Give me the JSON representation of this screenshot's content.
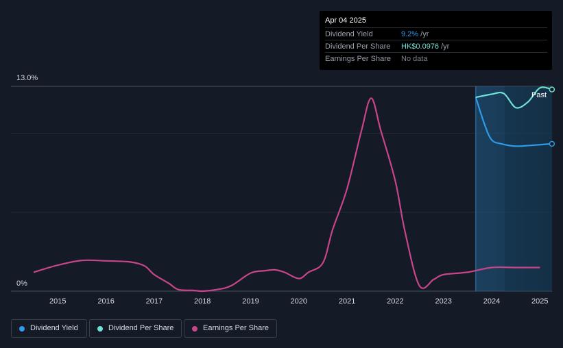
{
  "tooltip": {
    "date": "Apr 04 2025",
    "rows": [
      {
        "label": "Dividend Yield",
        "value": "9.2%",
        "unit": " /yr",
        "color": "#2e9be8"
      },
      {
        "label": "Dividend Per Share",
        "value": "HK$0.0976",
        "unit": " /yr",
        "color": "#6fe0d4"
      },
      {
        "label": "Earnings Per Share",
        "value": "No data",
        "unit": "",
        "color": "#7b818c"
      }
    ]
  },
  "legend": [
    {
      "label": "Dividend Yield",
      "color": "#2e9be8"
    },
    {
      "label": "Dividend Per Share",
      "color": "#6fe0d4"
    },
    {
      "label": "Earnings Per Share",
      "color": "#c9458a"
    }
  ],
  "chart_data": {
    "type": "line",
    "y_max_label": "13.0%",
    "y_min_label": "0%",
    "past_label": "Past",
    "ylim": [
      0,
      13
    ],
    "xlim": [
      2014.5,
      2025.25
    ],
    "x_ticks": [
      "2015",
      "2016",
      "2017",
      "2018",
      "2019",
      "2020",
      "2021",
      "2022",
      "2023",
      "2024",
      "2025"
    ],
    "series": [
      {
        "name": "Earnings Per Share",
        "color": "#c9458a",
        "points": [
          [
            2014.5,
            1.2
          ],
          [
            2015.0,
            1.65
          ],
          [
            2015.5,
            1.95
          ],
          [
            2016.0,
            1.92
          ],
          [
            2016.5,
            1.85
          ],
          [
            2016.8,
            1.6
          ],
          [
            2017.0,
            1.05
          ],
          [
            2017.3,
            0.5
          ],
          [
            2017.5,
            0.1
          ],
          [
            2017.8,
            0.05
          ],
          [
            2018.0,
            0.0
          ],
          [
            2018.3,
            0.1
          ],
          [
            2018.6,
            0.35
          ],
          [
            2019.0,
            1.15
          ],
          [
            2019.3,
            1.3
          ],
          [
            2019.5,
            1.35
          ],
          [
            2019.7,
            1.2
          ],
          [
            2020.0,
            0.8
          ],
          [
            2020.2,
            1.2
          ],
          [
            2020.5,
            1.8
          ],
          [
            2020.7,
            3.9
          ],
          [
            2021.0,
            6.5
          ],
          [
            2021.3,
            10.2
          ],
          [
            2021.5,
            12.25
          ],
          [
            2021.7,
            10.2
          ],
          [
            2022.0,
            7.0
          ],
          [
            2022.2,
            3.8
          ],
          [
            2022.5,
            0.35
          ],
          [
            2022.8,
            0.75
          ],
          [
            2023.0,
            1.05
          ],
          [
            2023.5,
            1.2
          ],
          [
            2024.0,
            1.5
          ],
          [
            2024.5,
            1.5
          ],
          [
            2025.0,
            1.5
          ]
        ]
      },
      {
        "name": "Dividend Yield",
        "color": "#2e9be8",
        "points": [
          [
            2023.67,
            12.3
          ],
          [
            2023.85,
            10.6
          ],
          [
            2024.0,
            9.6
          ],
          [
            2024.2,
            9.35
          ],
          [
            2024.5,
            9.2
          ],
          [
            2024.8,
            9.25
          ],
          [
            2025.25,
            9.35
          ]
        ]
      },
      {
        "name": "Dividend Per Share",
        "color": "#6fe0d4",
        "points": [
          [
            2023.67,
            12.3
          ],
          [
            2024.0,
            12.5
          ],
          [
            2024.25,
            12.55
          ],
          [
            2024.5,
            11.65
          ],
          [
            2024.75,
            12.0
          ],
          [
            2025.0,
            12.9
          ],
          [
            2025.25,
            12.8
          ]
        ]
      }
    ]
  }
}
